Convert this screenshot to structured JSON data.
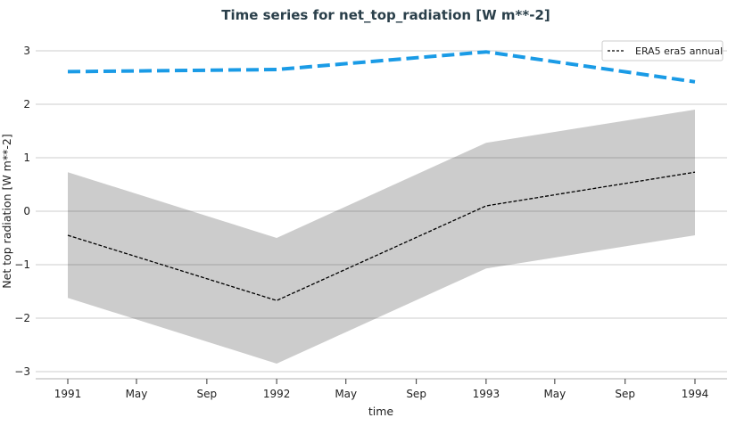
{
  "chart_data": {
    "type": "line",
    "title": "Time series for net_top_radiation [W m**-2]",
    "xlabel": "time",
    "ylabel": "Net top radiation [W m**-2]",
    "ylim": [
      -3.2,
      3.3
    ],
    "xlim": [
      "1990-11-01",
      "1994-03-01"
    ],
    "yticks": [
      -3,
      -2,
      -1,
      0,
      1,
      2,
      3
    ],
    "xticks": [
      {
        "date": "1991-01-01",
        "label": "1991"
      },
      {
        "date": "1991-05-01",
        "label": "May"
      },
      {
        "date": "1991-09-01",
        "label": "Sep"
      },
      {
        "date": "1992-01-01",
        "label": "1992"
      },
      {
        "date": "1992-05-01",
        "label": "May"
      },
      {
        "date": "1992-09-01",
        "label": "Sep"
      },
      {
        "date": "1993-01-01",
        "label": "1993"
      },
      {
        "date": "1993-05-01",
        "label": "May"
      },
      {
        "date": "1993-09-01",
        "label": "Sep"
      },
      {
        "date": "1994-01-01",
        "label": "1994"
      }
    ],
    "grid": "horizontal",
    "legend_position": "top-right",
    "x": [
      "1991-01-01",
      "1992-01-01",
      "1993-01-01",
      "1994-01-01"
    ],
    "series": [
      {
        "name": "ERA5 era5 annual",
        "values": [
          -0.45,
          -1.67,
          0.1,
          0.73
        ],
        "color": "#000000",
        "style": "dashed"
      },
      {
        "values": [
          2.61,
          2.65,
          2.98,
          2.42
        ],
        "color": "#1a9be6",
        "style": "dashed-thick"
      }
    ],
    "band": {
      "upper": [
        0.73,
        -0.5,
        1.28,
        1.9
      ],
      "lower": [
        -1.62,
        -2.85,
        -1.07,
        -0.45
      ],
      "color": "#cccccc"
    }
  }
}
